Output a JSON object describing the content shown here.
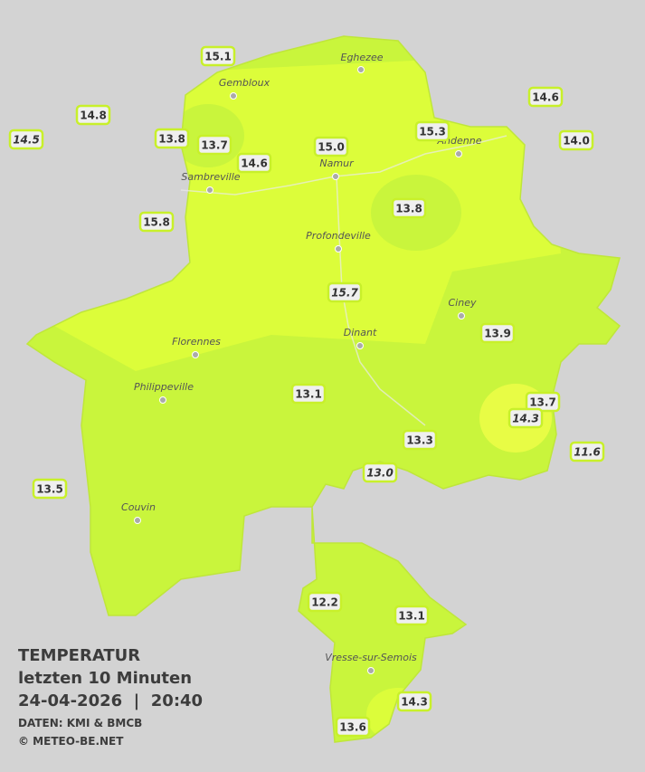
{
  "legend": {
    "title": "TEMPERATUR",
    "period": "letzten 10 Minuten",
    "datetime": "24-04-2026  |  20:40",
    "source": "DATEN: KMI & BMCB",
    "copyright": "© METEO-BE.NET"
  },
  "cities": [
    {
      "name": "Eghezee"
    },
    {
      "name": "Gembloux"
    },
    {
      "name": "Andenne"
    },
    {
      "name": "Namur"
    },
    {
      "name": "Sambreville"
    },
    {
      "name": "Profondeville"
    },
    {
      "name": "Ciney"
    },
    {
      "name": "Dinant"
    },
    {
      "name": "Florennes"
    },
    {
      "name": "Philippeville"
    },
    {
      "name": "Couvin"
    },
    {
      "name": "Vresse-sur-Semois"
    }
  ],
  "stations": [
    {
      "label": "15.1",
      "italic": false
    },
    {
      "label": "14.8",
      "italic": false
    },
    {
      "label": "14.5",
      "italic": true
    },
    {
      "label": "13.8",
      "italic": false
    },
    {
      "label": "13.7",
      "italic": false
    },
    {
      "label": "14.6",
      "italic": false
    },
    {
      "label": "15.0",
      "italic": false
    },
    {
      "label": "15.3",
      "italic": false
    },
    {
      "label": "14.6",
      "italic": false
    },
    {
      "label": "14.0",
      "italic": false
    },
    {
      "label": "13.8",
      "italic": false
    },
    {
      "label": "15.8",
      "italic": false
    },
    {
      "label": "15.7",
      "italic": true
    },
    {
      "label": "13.9",
      "italic": false
    },
    {
      "label": "13.1",
      "italic": false
    },
    {
      "label": "13.7",
      "italic": false
    },
    {
      "label": "14.3",
      "italic": true
    },
    {
      "label": "13.3",
      "italic": false
    },
    {
      "label": "13.0",
      "italic": true
    },
    {
      "label": "11.6",
      "italic": true
    },
    {
      "label": "13.5",
      "italic": false
    },
    {
      "label": "12.2",
      "italic": false
    },
    {
      "label": "13.1",
      "italic": false
    },
    {
      "label": "14.3",
      "italic": false
    },
    {
      "label": "13.6",
      "italic": false
    }
  ]
}
